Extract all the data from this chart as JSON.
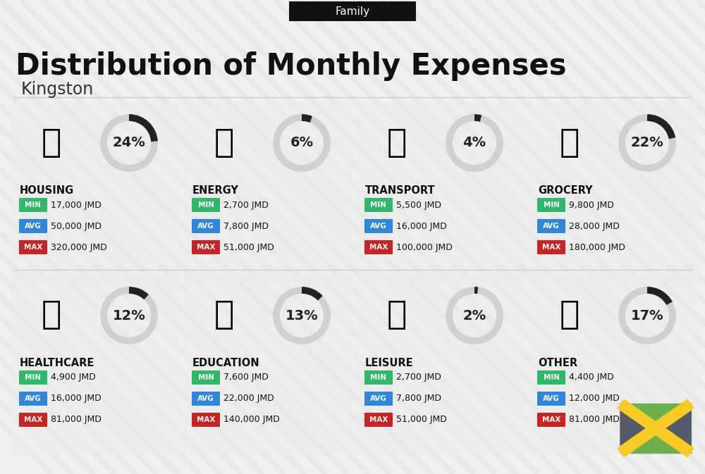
{
  "title": "Distribution of Monthly Expenses",
  "subtitle": "Kingston",
  "family_label": "Family",
  "bg_color": "#f0f0f0",
  "categories": [
    {
      "name": "HOUSING",
      "percent": 24,
      "icon": "🏗",
      "min": "17,000 JMD",
      "avg": "50,000 JMD",
      "max": "320,000 JMD",
      "row": 0,
      "col": 0
    },
    {
      "name": "ENERGY",
      "percent": 6,
      "icon": "⚡",
      "min": "2,700 JMD",
      "avg": "7,800 JMD",
      "max": "51,000 JMD",
      "row": 0,
      "col": 1
    },
    {
      "name": "TRANSPORT",
      "percent": 4,
      "icon": "🚌",
      "min": "5,500 JMD",
      "avg": "16,000 JMD",
      "max": "100,000 JMD",
      "row": 0,
      "col": 2
    },
    {
      "name": "GROCERY",
      "percent": 22,
      "icon": "🫙",
      "min": "9,800 JMD",
      "avg": "28,000 JMD",
      "max": "180,000 JMD",
      "row": 0,
      "col": 3
    },
    {
      "name": "HEALTHCARE",
      "percent": 12,
      "icon": "🩺",
      "min": "4,900 JMD",
      "avg": "16,000 JMD",
      "max": "81,000 JMD",
      "row": 1,
      "col": 0
    },
    {
      "name": "EDUCATION",
      "percent": 13,
      "icon": "🎓",
      "min": "7,600 JMD",
      "avg": "22,000 JMD",
      "max": "140,000 JMD",
      "row": 1,
      "col": 1
    },
    {
      "name": "LEISURE",
      "percent": 2,
      "icon": "🛍",
      "min": "2,700 JMD",
      "avg": "7,800 JMD",
      "max": "51,000 JMD",
      "row": 1,
      "col": 2
    },
    {
      "name": "OTHER",
      "percent": 17,
      "icon": "💛",
      "min": "4,400 JMD",
      "avg": "12,000 JMD",
      "max": "81,000 JMD",
      "row": 1,
      "col": 3
    }
  ],
  "min_color": "#2db966",
  "avg_color": "#2e86de",
  "max_color": "#cc2222",
  "arc_bg": "#d0d0d0",
  "arc_fg": "#222222",
  "flag_green": "#6ab04c",
  "flag_yellow": "#f9ca24",
  "flag_gray": "#535c68"
}
